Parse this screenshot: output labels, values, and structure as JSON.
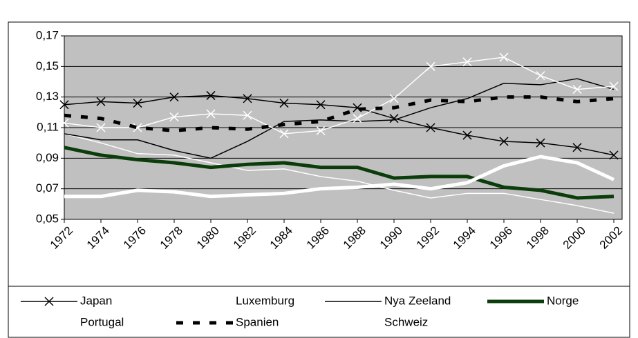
{
  "chart_data": {
    "type": "line",
    "categories": [
      "1972",
      "1974",
      "1976",
      "1978",
      "1980",
      "1982",
      "1984",
      "1986",
      "1988",
      "1990",
      "1992",
      "1994",
      "1996",
      "1998",
      "2000",
      "2002"
    ],
    "ylim": [
      0.05,
      0.17
    ],
    "yticks": [
      {
        "value": 0.05,
        "label": "0,05"
      },
      {
        "value": 0.07,
        "label": "0,07"
      },
      {
        "value": 0.09,
        "label": "0,09"
      },
      {
        "value": 0.11,
        "label": "0,11"
      },
      {
        "value": 0.13,
        "label": "0,13"
      },
      {
        "value": 0.15,
        "label": "0,15"
      },
      {
        "value": 0.17,
        "label": "0,17"
      }
    ],
    "grid": true,
    "background": "#c0c0c0",
    "series": [
      {
        "name": "Japan",
        "color": "#000000",
        "width": 1.5,
        "marker": "x",
        "values": [
          0.125,
          0.127,
          0.126,
          0.13,
          0.131,
          0.129,
          0.126,
          0.125,
          0.123,
          0.116,
          0.11,
          0.105,
          0.101,
          0.1,
          0.097,
          0.092
        ]
      },
      {
        "name": "Luxemburg",
        "color": "#ffffff",
        "width": 1.5,
        "values": [
          0.106,
          0.1,
          0.093,
          0.092,
          0.087,
          0.082,
          0.083,
          0.078,
          0.075,
          0.069,
          0.064,
          0.067,
          0.067,
          0.063,
          0.059,
          0.054
        ]
      },
      {
        "name": "Nya Zeeland",
        "color": "#000000",
        "width": 1.5,
        "values": [
          0.106,
          0.102,
          0.102,
          0.095,
          0.09,
          0.101,
          0.114,
          0.115,
          0.114,
          0.115,
          0.123,
          0.129,
          0.139,
          0.138,
          0.142,
          0.135
        ]
      },
      {
        "name": "Norge",
        "color": "#0b3d0b",
        "width": 5,
        "values": [
          0.097,
          0.092,
          0.089,
          0.087,
          0.084,
          0.086,
          0.087,
          0.084,
          0.084,
          0.077,
          0.078,
          0.078,
          0.071,
          0.069,
          0.064,
          0.065
        ]
      },
      {
        "name": "Portugal",
        "color": "#ffffff",
        "width": 1.5,
        "marker": "x",
        "values": [
          0.113,
          0.11,
          0.11,
          0.117,
          0.119,
          0.118,
          0.106,
          0.108,
          0.116,
          0.129,
          0.15,
          0.153,
          0.156,
          0.144,
          0.135,
          0.137
        ]
      },
      {
        "name": "Spanien",
        "color": "#000000",
        "width": 5,
        "dash": "10 14",
        "values": [
          0.118,
          0.116,
          0.11,
          0.108,
          0.11,
          0.109,
          0.112,
          0.114,
          0.122,
          0.123,
          0.128,
          0.127,
          0.13,
          0.13,
          0.127,
          0.129
        ]
      },
      {
        "name": "Schweiz",
        "color": "#ffffff",
        "width": 5,
        "values": [
          0.065,
          0.065,
          0.069,
          0.068,
          0.065,
          0.066,
          0.067,
          0.07,
          0.071,
          0.073,
          0.07,
          0.074,
          0.085,
          0.091,
          0.087,
          0.076
        ]
      }
    ]
  }
}
